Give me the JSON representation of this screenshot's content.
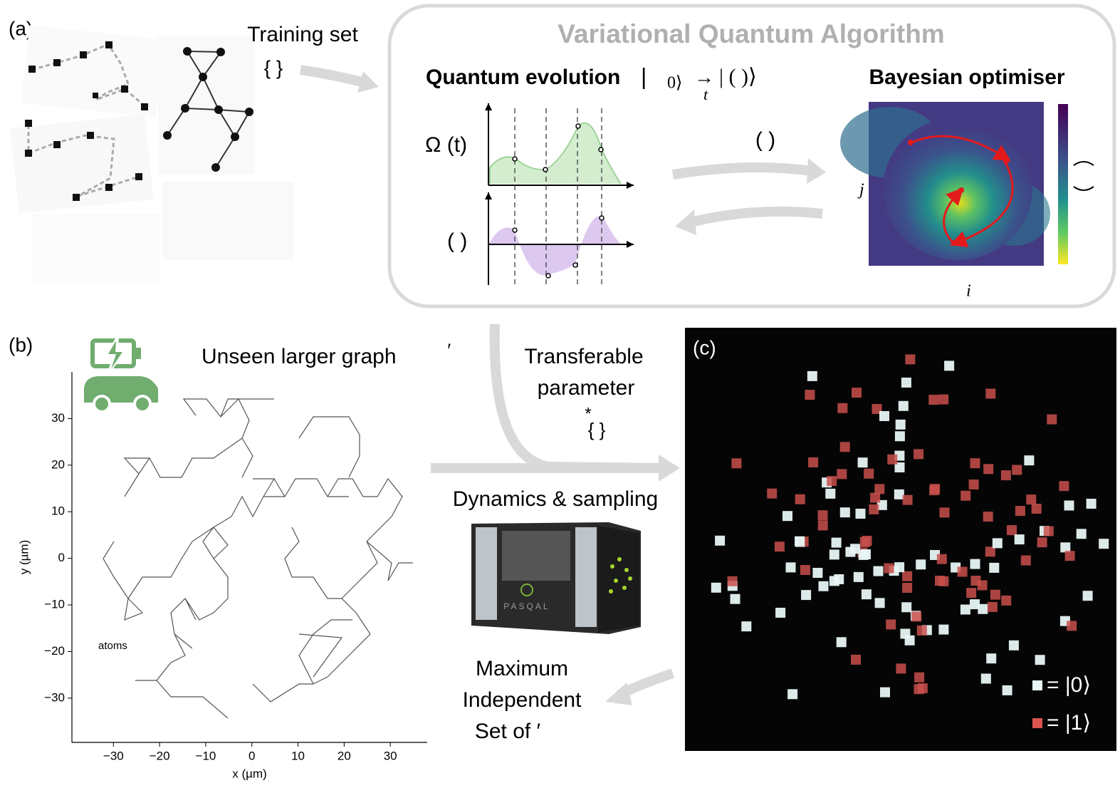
{
  "panel_a": {
    "label": "(a)",
    "training_set": "Training set",
    "training_braces": "{   }",
    "vqa_title": "Variational Quantum Algorithm",
    "quantum_evolution": "Quantum evolution",
    "ket_open": "|",
    "ket_zero": "0⟩",
    "t_symbol": "t",
    "ket_final": "|    (   )⟩",
    "omega_label": "Ω (t)",
    "delta_label": "(   )",
    "arrow_label": "(   )",
    "bayesian_optimiser": "Bayesian optimiser",
    "axis_j": "j",
    "axis_i": "i"
  },
  "panel_b": {
    "label": "(b)",
    "unseen_graph": "Unseen larger graph",
    "prime": "′",
    "transferable": [
      "Transferable",
      "parameter"
    ],
    "star": "*",
    "param_braces": "{   }",
    "dynamics": "Dynamics & sampling",
    "device_brand": "PASQAL",
    "mis": [
      "Maximum",
      "Independent",
      "Set of   ′"
    ]
  },
  "chart_data": {
    "type": "graph",
    "xlabel": "x (µm)",
    "ylabel": "y (µm)",
    "annotation": "atoms",
    "xlim": [
      -39,
      38
    ],
    "ylim": [
      -39.5,
      40
    ],
    "xticks": [
      {
        "value": -30,
        "label": "−30"
      },
      {
        "value": -20,
        "label": "−20"
      },
      {
        "value": -10,
        "label": "−10"
      },
      0,
      10,
      20,
      30
    ],
    "yticks": [
      {
        "value": -30,
        "label": "−30"
      },
      {
        "value": -20,
        "label": "−20"
      },
      {
        "value": -10,
        "label": "−10"
      },
      0,
      10,
      20,
      30
    ]
  },
  "panel_c": {
    "label": "(c)",
    "legend": [
      "=  |0⟩",
      "=  |1⟩"
    ]
  }
}
